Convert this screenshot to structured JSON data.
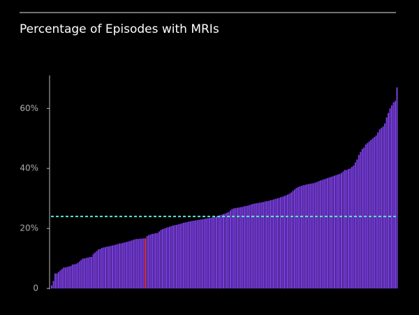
{
  "chart_data": {
    "type": "bar",
    "title": "Percentage of Episodes with MRIs",
    "color": "#7b3fe4",
    "highlight": {
      "index": 54,
      "color": "#e0304a"
    },
    "reference_line": {
      "value": 24,
      "color": "#5ee8d0"
    },
    "ylim": [
      0,
      71
    ],
    "yticks": [
      0,
      {
        "value": 20,
        "label": "20%"
      },
      {
        "value": 40,
        "label": "40%"
      },
      {
        "value": 60,
        "label": "60%"
      }
    ],
    "values": [
      1,
      2.5,
      5,
      5,
      5.5,
      6,
      6.5,
      7,
      7,
      7.2,
      7.3,
      7.5,
      8,
      8,
      8.2,
      8.5,
      9,
      9.5,
      10,
      10,
      10.2,
      10.3,
      10.5,
      10.5,
      11.5,
      12,
      12.5,
      13,
      13.2,
      13.5,
      13.7,
      13.8,
      14,
      14,
      14.2,
      14.3,
      14.5,
      14.6,
      14.8,
      15,
      15,
      15.2,
      15.3,
      15.5,
      15.6,
      15.8,
      16,
      16.2,
      16.4,
      16.5,
      16.5,
      16.6,
      16.6,
      16.7,
      16.7,
      17.5,
      17.8,
      18,
      18.2,
      18.3,
      18.4,
      18.5,
      19,
      19.5,
      19.8,
      20,
      20.2,
      20.4,
      20.6,
      20.8,
      21,
      21.1,
      21.2,
      21.4,
      21.5,
      21.7,
      21.9,
      22,
      22.1,
      22.3,
      22.4,
      22.5,
      22.6,
      22.7,
      22.8,
      22.9,
      23,
      23.1,
      23.2,
      23.3,
      23.4,
      23.5,
      23.6,
      23.7,
      23.8,
      24,
      24.2,
      24.4,
      24.6,
      24.8,
      25,
      25.2,
      25.5,
      26,
      26.5,
      26.7,
      26.8,
      26.9,
      27,
      27.1,
      27.2,
      27.4,
      27.5,
      27.6,
      27.8,
      28,
      28.2,
      28.3,
      28.4,
      28.5,
      28.6,
      28.7,
      28.8,
      29,
      29.1,
      29.2,
      29.4,
      29.5,
      29.7,
      29.9,
      30,
      30.2,
      30.4,
      30.6,
      30.8,
      31,
      31.3,
      31.6,
      32,
      32.5,
      33,
      33.5,
      33.8,
      34,
      34.2,
      34.4,
      34.5,
      34.7,
      34.8,
      34.9,
      35,
      35.1,
      35.3,
      35.5,
      35.8,
      36,
      36.2,
      36.4,
      36.6,
      36.8,
      37,
      37.2,
      37.4,
      37.6,
      37.8,
      38,
      38.2,
      38.5,
      39,
      39.5,
      39.5,
      39.8,
      40,
      40.5,
      41,
      42,
      43,
      44.5,
      45.5,
      46.5,
      47,
      48,
      48.5,
      49,
      49.5,
      50,
      50.5,
      51,
      52,
      53,
      53.5,
      54,
      55,
      57,
      58.5,
      60,
      61,
      62,
      62.5,
      67
    ]
  }
}
